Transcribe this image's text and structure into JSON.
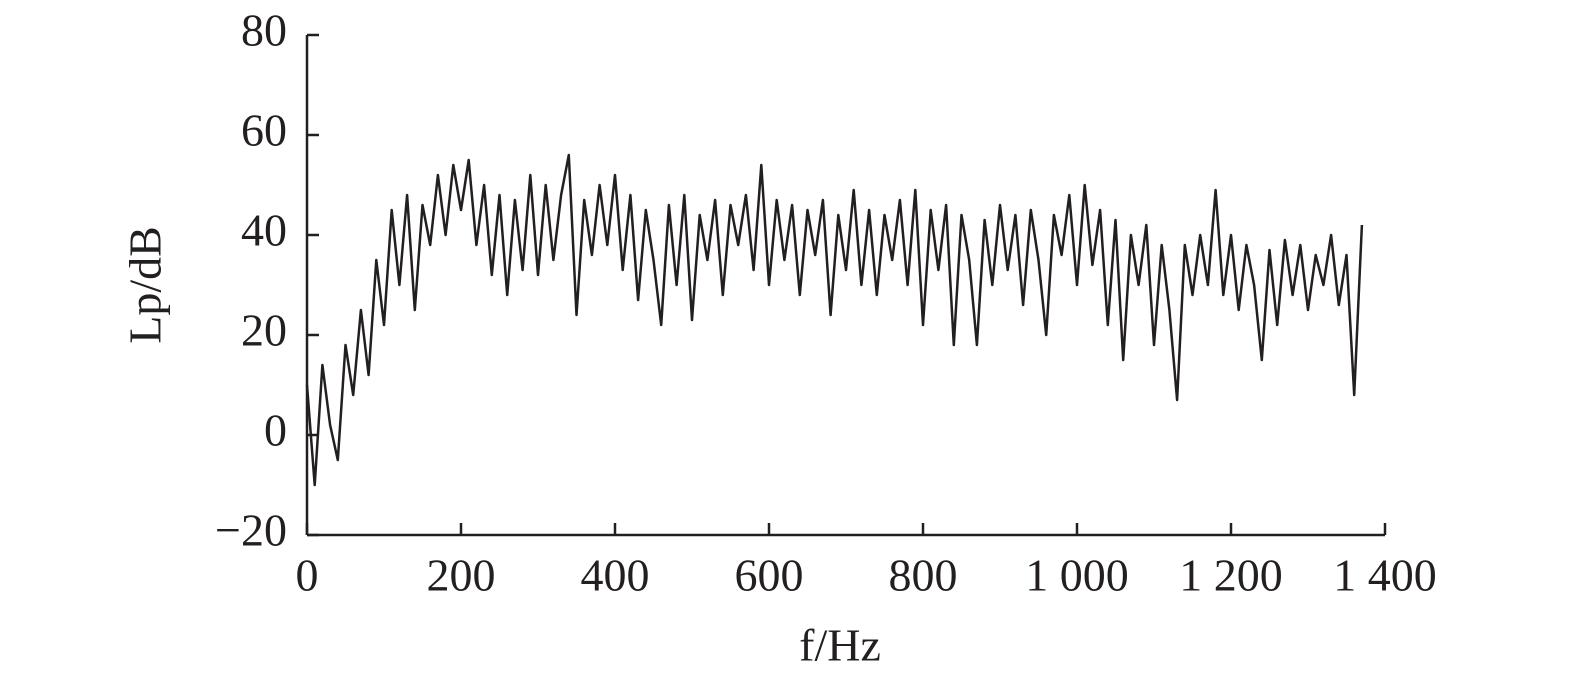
{
  "chart_data": {
    "type": "line",
    "xlabel": "f/Hz",
    "ylabel": "Lp/dB",
    "x": [
      0,
      10,
      20,
      30,
      40,
      50,
      60,
      70,
      80,
      90,
      100,
      110,
      120,
      130,
      140,
      150,
      160,
      170,
      180,
      190,
      200,
      210,
      220,
      230,
      240,
      250,
      260,
      270,
      280,
      290,
      300,
      310,
      320,
      330,
      340,
      350,
      360,
      370,
      380,
      390,
      400,
      410,
      420,
      430,
      440,
      450,
      460,
      470,
      480,
      490,
      500,
      510,
      520,
      530,
      540,
      550,
      560,
      570,
      580,
      590,
      600,
      610,
      620,
      630,
      640,
      650,
      660,
      670,
      680,
      690,
      700,
      710,
      720,
      730,
      740,
      750,
      760,
      770,
      780,
      790,
      800,
      810,
      820,
      830,
      840,
      850,
      860,
      870,
      880,
      890,
      900,
      910,
      920,
      930,
      940,
      950,
      960,
      970,
      980,
      990,
      1000,
      1010,
      1020,
      1030,
      1040,
      1050,
      1060,
      1070,
      1080,
      1090,
      1100,
      1110,
      1120,
      1130,
      1140,
      1150,
      1160,
      1170,
      1180,
      1190,
      1200,
      1210,
      1220,
      1230,
      1240,
      1250,
      1260,
      1270,
      1280,
      1290,
      1300,
      1310,
      1320,
      1330,
      1340,
      1350,
      1360,
      1370
    ],
    "series": [
      {
        "color": "#231f20",
        "values": [
          10,
          -10,
          14,
          2,
          -5,
          18,
          8,
          25,
          12,
          35,
          22,
          45,
          30,
          48,
          25,
          46,
          38,
          52,
          40,
          54,
          45,
          55,
          38,
          50,
          32,
          48,
          28,
          47,
          33,
          52,
          32,
          50,
          35,
          48,
          56,
          24,
          47,
          36,
          50,
          38,
          52,
          33,
          48,
          27,
          45,
          35,
          22,
          46,
          30,
          48,
          23,
          44,
          35,
          47,
          28,
          46,
          38,
          48,
          33,
          54,
          30,
          47,
          35,
          46,
          28,
          45,
          36,
          47,
          24,
          44,
          33,
          49,
          30,
          45,
          28,
          44,
          35,
          47,
          30,
          49,
          22,
          45,
          33,
          46,
          18,
          44,
          35,
          18,
          43,
          30,
          46,
          33,
          44,
          26,
          45,
          35,
          20,
          44,
          36,
          48,
          30,
          50,
          34,
          45,
          22,
          43,
          15,
          40,
          30,
          42,
          18,
          38,
          25,
          7,
          38,
          28,
          40,
          30,
          49,
          28,
          40,
          25,
          38,
          30,
          15,
          37,
          22,
          39,
          28,
          38,
          25,
          36,
          30,
          40,
          26,
          36,
          8,
          42
        ]
      }
    ],
    "xlim": [
      0,
      1400
    ],
    "xticks": [
      0,
      200,
      400,
      600,
      800,
      {
        "value": 1000,
        "label": "1 000"
      },
      {
        "value": 1200,
        "label": "1 200"
      },
      {
        "value": 1400,
        "label": "1 400"
      }
    ],
    "ylim": [
      -20,
      80
    ],
    "yticks": [
      {
        "value": -20,
        "label": "−20"
      },
      0,
      20,
      40,
      60,
      80
    ]
  }
}
